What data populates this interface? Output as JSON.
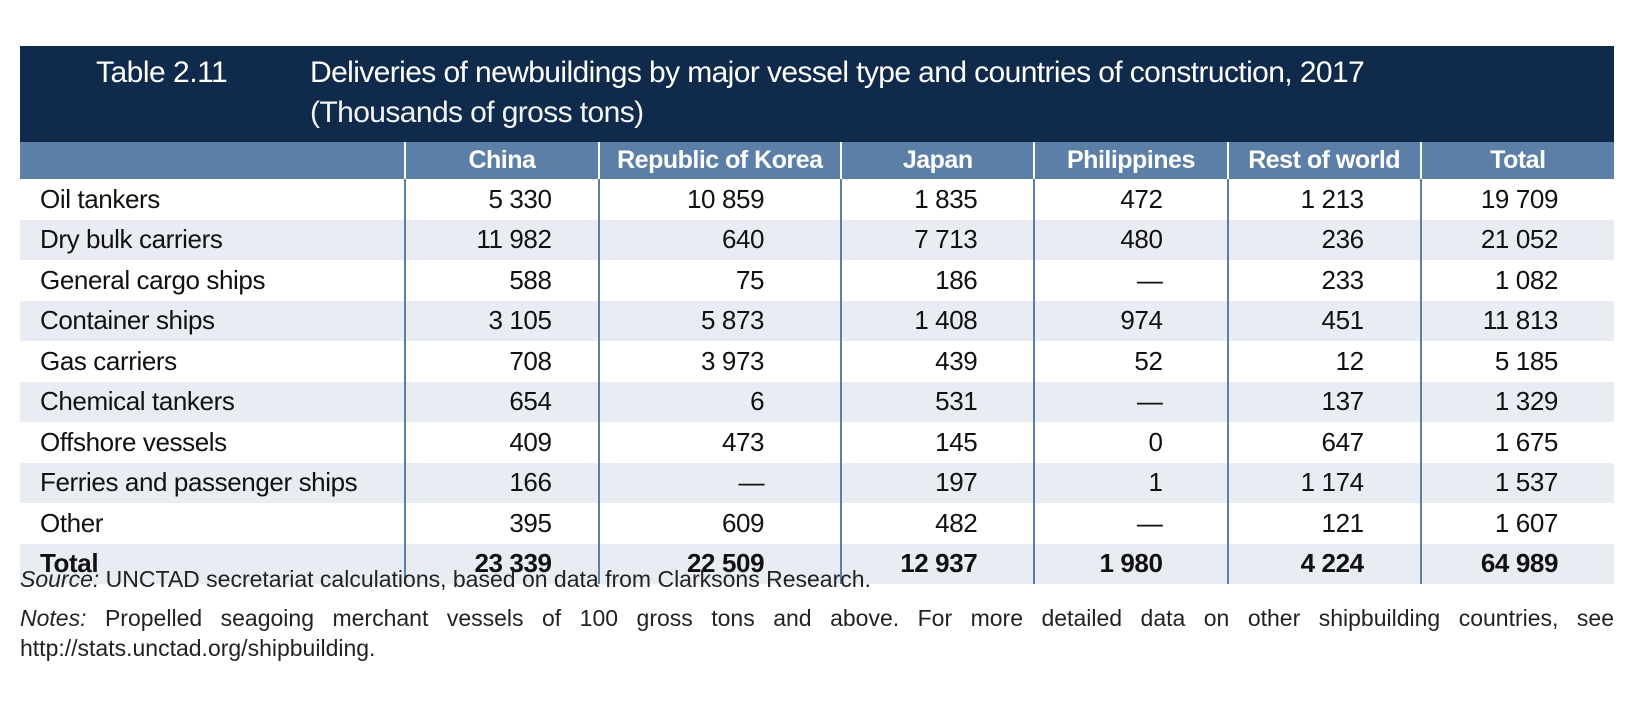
{
  "header": {
    "table_number": "Table 2.11",
    "title": "Deliveries of newbuildings by major vessel type and countries of construction, 2017",
    "subtitle": "(Thousands of gross tons)"
  },
  "columns": [
    "",
    "China",
    "Republic of Korea",
    "Japan",
    "Philippines",
    "Rest of world",
    "Total"
  ],
  "rows": [
    {
      "label": "Oil tankers",
      "values": [
        "5 330",
        "10 859",
        "1 835",
        "472",
        "1 213",
        "19 709"
      ]
    },
    {
      "label": "Dry bulk carriers",
      "values": [
        "11 982",
        "640",
        "7 713",
        "480",
        "236",
        "21 052"
      ]
    },
    {
      "label": "General cargo ships",
      "values": [
        "588",
        "75",
        "186",
        "—",
        "233",
        "1 082"
      ]
    },
    {
      "label": "Container ships",
      "values": [
        "3 105",
        "5 873",
        "1 408",
        "974",
        "451",
        "11 813"
      ]
    },
    {
      "label": "Gas carriers",
      "values": [
        "708",
        "3 973",
        "439",
        "52",
        "12",
        "5 185"
      ]
    },
    {
      "label": "Chemical tankers",
      "values": [
        "654",
        "6",
        "531",
        "—",
        "137",
        "1 329"
      ]
    },
    {
      "label": "Offshore vessels",
      "values": [
        "409",
        "473",
        "145",
        "0",
        "647",
        "1 675"
      ]
    },
    {
      "label": "Ferries and passenger ships",
      "values": [
        "166",
        "—",
        "197",
        "1",
        "1 174",
        "1 537"
      ]
    },
    {
      "label": "Other",
      "values": [
        "395",
        "609",
        "482",
        "—",
        "121",
        "1 607"
      ]
    }
  ],
  "total_row": {
    "label": "Total",
    "values": [
      "23 339",
      "22 509",
      "12 937",
      "1 980",
      "4 224",
      "64 989"
    ]
  },
  "footer": {
    "source_label": "Source:",
    "source_text": "UNCTAD secretariat calculations, based on data from Clarksons Research.",
    "notes_label": "Notes:",
    "notes_text": "Propelled seagoing merchant vessels of 100 gross tons and above. For more detailed data on other shipbuilding countries, see http://stats.unctad.org/shipbuilding."
  },
  "colors": {
    "title_bar": "#0f2a4a",
    "header_row": "#5b7fa6",
    "stripe": "#e9edf3"
  }
}
